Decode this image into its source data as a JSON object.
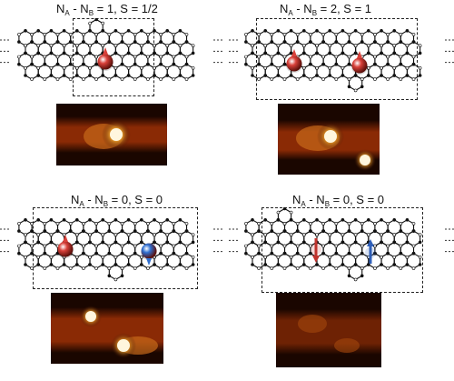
{
  "panels": [
    {
      "id": "top-left",
      "title": {
        "n": "N",
        "a": "A",
        "mid": " - N",
        "b": "B",
        "rest": " = 1, S = 1/2"
      },
      "spins": [
        {
          "kind": "up",
          "color": "#d9413a"
        }
      ],
      "stm_spots": 1
    },
    {
      "id": "top-right",
      "title": {
        "n": "N",
        "a": "A",
        "mid": " - N",
        "b": "B",
        "rest": " = 2, S = 1"
      },
      "spins": [
        {
          "kind": "up",
          "color": "#d9413a"
        },
        {
          "kind": "up",
          "color": "#d9413a"
        }
      ],
      "stm_spots": 2
    },
    {
      "id": "bottom-left",
      "title": {
        "n": "N",
        "a": "A",
        "mid": " - N",
        "b": "B",
        "rest": " = 0, S = 0"
      },
      "spins": [
        {
          "kind": "up",
          "color": "#d9413a"
        },
        {
          "kind": "down",
          "color": "#2f6fd1"
        }
      ],
      "stm_spots": 2
    },
    {
      "id": "bottom-right",
      "title": {
        "n": "N",
        "a": "A",
        "mid": " - N",
        "b": "B",
        "rest": " = 0, S = 0"
      },
      "spins": [
        {
          "kind": "down-arrow",
          "color": "#c0332d"
        },
        {
          "kind": "up-arrow",
          "color": "#2f5fb8"
        }
      ],
      "stm_spots": 0
    }
  ]
}
